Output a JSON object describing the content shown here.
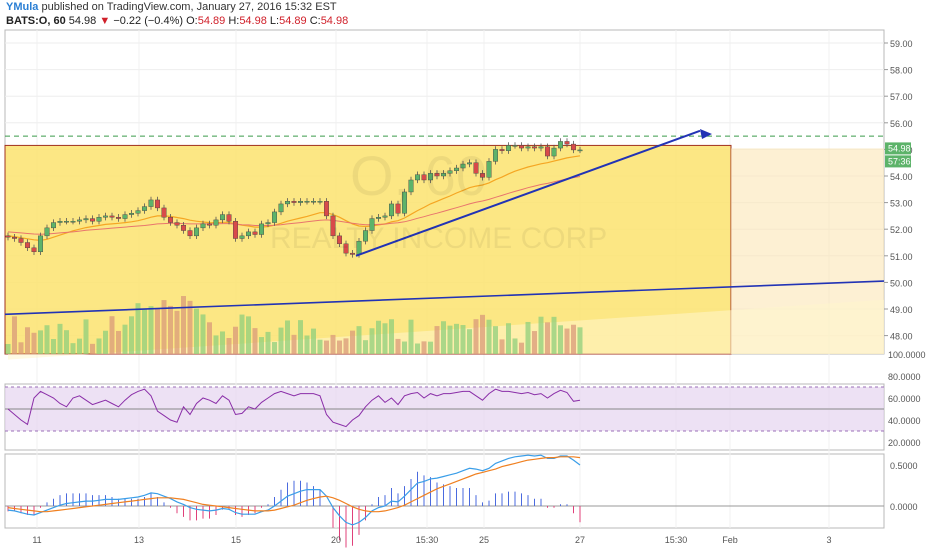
{
  "header": {
    "author": "YMula",
    "published_text": "published on TradingView.com, January 27, 2016 15:32 EST",
    "symbol": "BATS:O, 60",
    "last": "54.98",
    "change": "−0.22 (−0.4%)",
    "o_label": "O:",
    "o": "54.89",
    "h_label": "H:",
    "h": "54.98",
    "l_label": "L:",
    "l": "54.89",
    "c_label": "C:",
    "c": "54.98"
  },
  "watermark": {
    "symbol": "O, 60",
    "name": "REALTY INCOME CORP"
  },
  "colors": {
    "up": "#5db36a",
    "down": "#d84a4a",
    "ema": "#f5a623",
    "sma": "#e8756d",
    "trend": "#2233b5",
    "dashed": "#3a9a4a",
    "zone": "#fce36e",
    "rsi": "#8a2ea8",
    "macd": "#3a9ee8",
    "signal": "#f08020"
  },
  "chart_data": [
    {
      "type": "candlestick",
      "panel": "price",
      "ylim": [
        47.5,
        59.4
      ],
      "y_ticks": [
        "59.00",
        "58.00",
        "57.00",
        "56.00",
        "55.00",
        "54.00",
        "53.00",
        "52.00",
        "51.00",
        "50.00",
        "49.00",
        "48.00"
      ],
      "x_ticks": [
        "11",
        "13",
        "15",
        "20",
        "15:30",
        "25",
        "27",
        "15:30",
        "Feb",
        "3"
      ],
      "last_price_label": "54.98",
      "countdown_label": "57:36",
      "resistance_level": 55.5,
      "zone": {
        "top": 55.15,
        "bottom": 47.5
      },
      "closes": [
        51.7,
        51.65,
        51.5,
        51.3,
        51.15,
        51.75,
        52.05,
        52.25,
        52.3,
        52.3,
        52.3,
        52.35,
        52.4,
        52.3,
        52.45,
        52.5,
        52.45,
        52.4,
        52.55,
        52.6,
        52.7,
        52.85,
        53.1,
        52.8,
        52.45,
        52.25,
        52.15,
        51.95,
        51.75,
        52.05,
        52.2,
        52.15,
        52.35,
        52.55,
        52.3,
        51.65,
        51.75,
        51.9,
        51.8,
        52.2,
        52.25,
        52.65,
        52.95,
        53.05,
        53.0,
        53.05,
        53.05,
        53.05,
        53.05,
        52.5,
        51.75,
        51.45,
        51.1,
        51.05,
        51.55,
        51.95,
        52.4,
        52.45,
        52.5,
        52.95,
        52.6,
        53.4,
        53.85,
        54.05,
        53.85,
        54.1,
        54.0,
        54.1,
        54.2,
        54.3,
        54.45,
        54.5,
        54.1,
        53.95,
        54.55,
        55.0,
        54.95,
        55.15,
        55.15,
        55.05,
        55.1,
        55.05,
        55.1,
        54.75,
        55.05,
        55.3,
        55.2,
        54.98,
        54.98
      ],
      "ema_1": [
        51.75,
        51.72,
        51.68,
        51.64,
        51.6,
        51.58,
        51.62,
        51.7,
        51.78,
        51.86,
        51.94,
        52.0,
        52.06,
        52.1,
        52.14,
        52.18,
        52.2,
        52.22,
        52.25,
        52.28,
        52.32,
        52.38,
        52.45,
        52.5,
        52.5,
        52.48,
        52.44,
        52.4,
        52.34,
        52.3,
        52.27,
        52.25,
        52.24,
        52.26,
        52.26,
        52.2,
        52.15,
        52.12,
        52.08,
        52.08,
        52.1,
        52.15,
        52.22,
        52.3,
        52.36,
        52.42,
        52.48,
        52.55,
        52.62,
        52.62,
        52.55,
        52.45,
        52.32,
        52.2,
        52.12,
        52.1,
        52.12,
        52.16,
        52.2,
        52.28,
        52.32,
        52.42,
        52.56,
        52.7,
        52.82,
        52.95,
        53.05,
        53.15,
        53.25,
        53.36,
        53.46,
        53.56,
        53.62,
        53.66,
        53.74,
        53.86,
        53.96,
        54.08,
        54.18,
        54.26,
        54.34,
        54.4,
        54.46,
        54.5,
        54.56,
        54.62,
        54.68,
        54.72,
        54.76
      ],
      "ema_2": [
        51.9,
        51.88,
        51.86,
        51.84,
        51.82,
        51.81,
        51.82,
        51.84,
        51.86,
        51.88,
        51.9,
        51.93,
        51.96,
        51.98,
        52.0,
        52.02,
        52.04,
        52.06,
        52.08,
        52.1,
        52.12,
        52.14,
        52.17,
        52.2,
        52.21,
        52.22,
        52.22,
        52.21,
        52.2,
        52.2,
        52.2,
        52.2,
        52.2,
        52.21,
        52.21,
        52.19,
        52.17,
        52.16,
        52.14,
        52.14,
        52.14,
        52.15,
        52.17,
        52.2,
        52.22,
        52.25,
        52.28,
        52.31,
        52.34,
        52.35,
        52.33,
        52.3,
        52.26,
        52.22,
        52.19,
        52.17,
        52.17,
        52.18,
        52.19,
        52.22,
        52.24,
        52.28,
        52.34,
        52.41,
        52.47,
        52.54,
        52.6,
        52.67,
        52.74,
        52.81,
        52.88,
        52.95,
        53.01,
        53.06,
        53.12,
        53.2,
        53.27,
        53.35,
        53.42,
        53.49,
        53.56,
        53.62,
        53.68,
        53.72,
        53.78,
        53.84,
        53.9,
        53.94,
        53.98
      ],
      "trendline_1": {
        "from_bar": 50,
        "from": 51.0,
        "to_bar": 93,
        "to": 55.7
      },
      "trendline_2": {
        "from_bar": 0,
        "from": 48.8,
        "to_bar": 121,
        "to": 50.05
      },
      "zone_band": {
        "from_bar": 0,
        "from": 48.6,
        "to_bar": 121,
        "to": 49.35
      },
      "volume_bars": 89
    },
    {
      "type": "line",
      "panel": "rsi",
      "ylim": [
        15,
        100
      ],
      "y_ticks": [
        "100.0000",
        "80.0000",
        "60.0000",
        "40.0000",
        "20.0000"
      ],
      "overbought": 70,
      "oversold": 30,
      "values": [
        50,
        45,
        40,
        36,
        60,
        66,
        63,
        60,
        55,
        52,
        60,
        62,
        58,
        54,
        56,
        58,
        55,
        52,
        58,
        63,
        66,
        68,
        62,
        48,
        44,
        40,
        38,
        52,
        45,
        55,
        60,
        58,
        55,
        62,
        58,
        45,
        46,
        52,
        50,
        56,
        60,
        64,
        66,
        64,
        62,
        64,
        64,
        64,
        62,
        45,
        38,
        36,
        34,
        40,
        44,
        52,
        58,
        62,
        56,
        60,
        54,
        62,
        64,
        65,
        60,
        64,
        62,
        64,
        64,
        65,
        66,
        66,
        62,
        58,
        64,
        68,
        66,
        66,
        65,
        64,
        65,
        63,
        64,
        60,
        64,
        67,
        65,
        57,
        58
      ]
    },
    {
      "type": "line",
      "panel": "macd",
      "ylim": [
        -0.3,
        0.75
      ],
      "y_ticks": [
        "0.5000",
        "0.0000"
      ],
      "macd": [
        -0.05,
        -0.06,
        -0.08,
        -0.1,
        -0.11,
        -0.08,
        -0.05,
        -0.02,
        0.01,
        0.03,
        0.04,
        0.05,
        0.06,
        0.06,
        0.07,
        0.08,
        0.08,
        0.08,
        0.09,
        0.1,
        0.11,
        0.13,
        0.16,
        0.15,
        0.12,
        0.09,
        0.05,
        0.02,
        -0.02,
        -0.04,
        -0.05,
        -0.06,
        -0.05,
        -0.03,
        -0.04,
        -0.08,
        -0.1,
        -0.1,
        -0.1,
        -0.07,
        -0.05,
        0.0,
        0.06,
        0.12,
        0.15,
        0.18,
        0.2,
        0.2,
        0.2,
        0.12,
        -0.02,
        -0.12,
        -0.2,
        -0.23,
        -0.2,
        -0.14,
        -0.06,
        -0.02,
        0.0,
        0.06,
        0.05,
        0.12,
        0.2,
        0.28,
        0.3,
        0.33,
        0.34,
        0.36,
        0.38,
        0.4,
        0.43,
        0.46,
        0.45,
        0.43,
        0.46,
        0.52,
        0.55,
        0.58,
        0.6,
        0.61,
        0.62,
        0.61,
        0.62,
        0.58,
        0.58,
        0.61,
        0.61,
        0.56,
        0.5
      ],
      "signal": [
        -0.02,
        -0.03,
        -0.04,
        -0.05,
        -0.06,
        -0.07,
        -0.07,
        -0.06,
        -0.05,
        -0.04,
        -0.03,
        -0.02,
        -0.01,
        0.0,
        0.01,
        0.02,
        0.03,
        0.04,
        0.05,
        0.06,
        0.07,
        0.08,
        0.09,
        0.1,
        0.1,
        0.1,
        0.09,
        0.08,
        0.06,
        0.04,
        0.02,
        0.01,
        0.0,
        -0.01,
        -0.02,
        -0.03,
        -0.04,
        -0.05,
        -0.06,
        -0.06,
        -0.06,
        -0.05,
        -0.03,
        -0.01,
        0.01,
        0.04,
        0.07,
        0.09,
        0.11,
        0.12,
        0.1,
        0.07,
        0.03,
        -0.01,
        -0.04,
        -0.06,
        -0.07,
        -0.07,
        -0.06,
        -0.04,
        -0.02,
        0.01,
        0.05,
        0.09,
        0.13,
        0.17,
        0.21,
        0.24,
        0.27,
        0.3,
        0.33,
        0.36,
        0.39,
        0.41,
        0.43,
        0.45,
        0.48,
        0.5,
        0.52,
        0.54,
        0.56,
        0.57,
        0.58,
        0.59,
        0.59,
        0.6,
        0.6,
        0.6,
        0.59
      ]
    }
  ]
}
